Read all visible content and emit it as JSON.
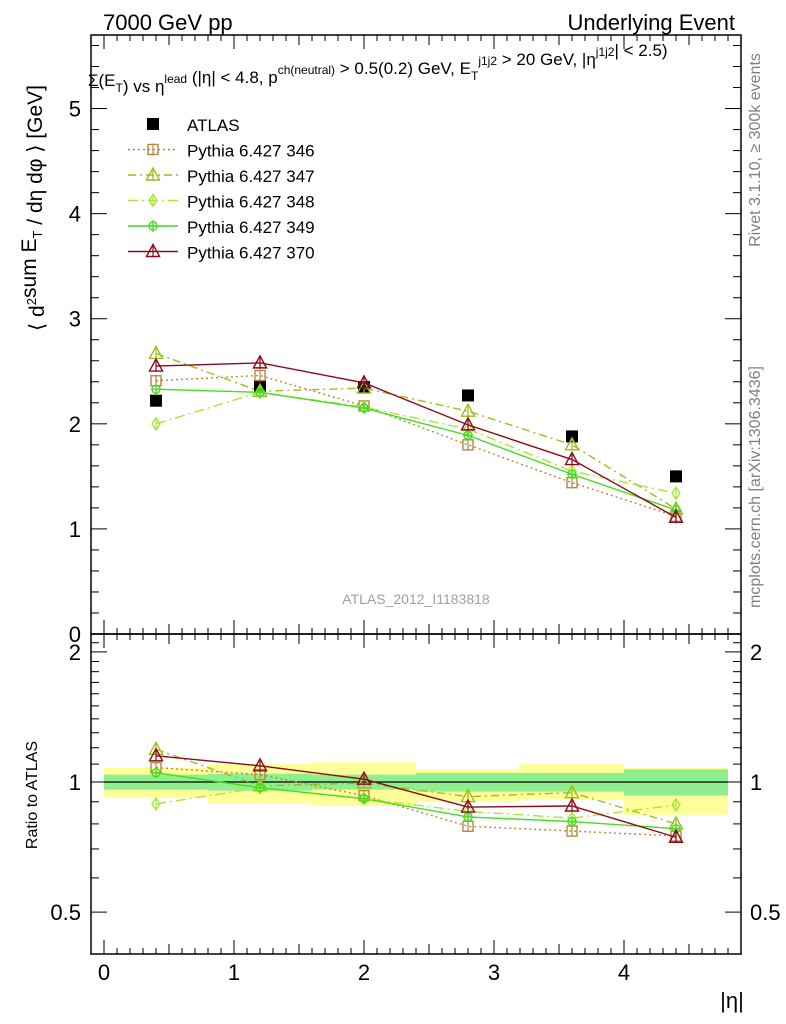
{
  "header": {
    "left": "7000 GeV pp",
    "right": "Underlying Event"
  },
  "main_ylabel": "⟨ d²sum E_T / dη dφ ⟩ [GeV]",
  "ratio_ylabel": "Ratio to ATLAS",
  "xlabel": "|η|",
  "analysis_label": "ATLAS_2012_I1183818",
  "side_labels": {
    "rivet": "Rivet 3.1.10, ≥ 300k events",
    "mcplots": "mcplots.cern.ch [arXiv:1306.3436]"
  },
  "colors": {
    "atlas": "#000000",
    "p346": "#b8863e",
    "p347": "#9abf1f",
    "p348": "#a8e83a",
    "p349": "#44dd22",
    "p370": "#8b0a1a",
    "band_inner": "#90ee90",
    "band_outer": "#ffff99"
  },
  "chart_data": [
    {
      "type": "line",
      "title": "Σ(E_T) vs η^lead (|η| < 4.8, p^ch(neutral) > 0.5(0.2) GeV, E_T^j1j2 > 20 GeV, |η^j1j2| < 2.5)",
      "xlabel": "|η|",
      "ylabel": "⟨ d²sum E_T / dη dφ ⟩ [GeV]",
      "xlim": [
        -0.1,
        4.9
      ],
      "ylim": [
        0,
        5.7
      ],
      "xticks": [
        "0",
        "1",
        "2",
        "3",
        "4"
      ],
      "yticks": [
        "0",
        "1",
        "2",
        "3",
        "4",
        "5"
      ],
      "x": [
        0.4,
        1.2,
        2.0,
        2.8,
        3.6,
        4.4
      ],
      "series": [
        {
          "name": "ATLAS",
          "marker": "square-filled",
          "values": [
            2.22,
            2.36,
            2.35,
            2.27,
            1.88,
            1.5
          ],
          "errors": [
            0.03,
            0.03,
            0.03,
            0.03,
            0.03,
            0.03
          ]
        },
        {
          "name": "Pythia 6.427 346",
          "marker": "square-open",
          "line": "dotted",
          "values": [
            2.41,
            2.46,
            2.17,
            1.8,
            1.44,
            1.12
          ]
        },
        {
          "name": "Pythia 6.427 347",
          "marker": "triangle-open",
          "line": "dashdot",
          "values": [
            2.67,
            2.31,
            2.34,
            2.12,
            1.8,
            1.19
          ]
        },
        {
          "name": "Pythia 6.427 348",
          "marker": "diamond-open",
          "line": "dashdot",
          "values": [
            2.0,
            2.3,
            2.16,
            1.95,
            1.55,
            1.34
          ]
        },
        {
          "name": "Pythia 6.427 349",
          "marker": "circle-cross",
          "line": "solid",
          "values": [
            2.33,
            2.3,
            2.15,
            1.89,
            1.52,
            1.18
          ]
        },
        {
          "name": "Pythia 6.427 370",
          "marker": "triangle-open",
          "line": "solid",
          "values": [
            2.55,
            2.58,
            2.39,
            1.99,
            1.66,
            1.11
          ]
        }
      ],
      "legend": "top-left"
    },
    {
      "type": "line",
      "xlabel": "|η|",
      "ylabel": "Ratio to ATLAS",
      "xlim": [
        -0.1,
        4.9
      ],
      "ylim": [
        0.4,
        2.2
      ],
      "yscale": "log",
      "xticks": [
        "0",
        "1",
        "2",
        "3",
        "4"
      ],
      "yticks": [
        "0.5",
        "1",
        "2"
      ],
      "x": [
        0.4,
        1.2,
        2.0,
        2.8,
        3.6,
        4.4
      ],
      "bins": [
        [
          0.0,
          0.8
        ],
        [
          0.8,
          1.6
        ],
        [
          1.6,
          2.4
        ],
        [
          2.4,
          3.2
        ],
        [
          3.2,
          4.0
        ],
        [
          4.0,
          4.8
        ]
      ],
      "band_inner": [
        [
          0.96,
          1.04
        ],
        [
          0.955,
          1.045
        ],
        [
          0.96,
          1.04
        ],
        [
          0.95,
          1.05
        ],
        [
          0.95,
          1.05
        ],
        [
          0.93,
          1.07
        ]
      ],
      "band_outer": [
        [
          0.92,
          1.08
        ],
        [
          0.89,
          1.1
        ],
        [
          0.88,
          1.11
        ],
        [
          0.9,
          1.07
        ],
        [
          0.91,
          1.1
        ],
        [
          0.84,
          1.08
        ]
      ],
      "series": [
        {
          "name": "Pythia 6.427 346",
          "values": [
            1.08,
            1.04,
            0.93,
            0.79,
            0.77,
            0.75
          ]
        },
        {
          "name": "Pythia 6.427 347",
          "values": [
            1.19,
            0.98,
            0.995,
            0.925,
            0.945,
            0.8
          ]
        },
        {
          "name": "Pythia 6.427 348",
          "values": [
            0.89,
            0.97,
            0.915,
            0.855,
            0.825,
            0.885
          ]
        },
        {
          "name": "Pythia 6.427 349",
          "values": [
            1.05,
            0.97,
            0.915,
            0.83,
            0.81,
            0.78
          ]
        },
        {
          "name": "Pythia 6.427 370",
          "values": [
            1.15,
            1.09,
            1.015,
            0.875,
            0.88,
            0.745
          ]
        }
      ]
    }
  ]
}
